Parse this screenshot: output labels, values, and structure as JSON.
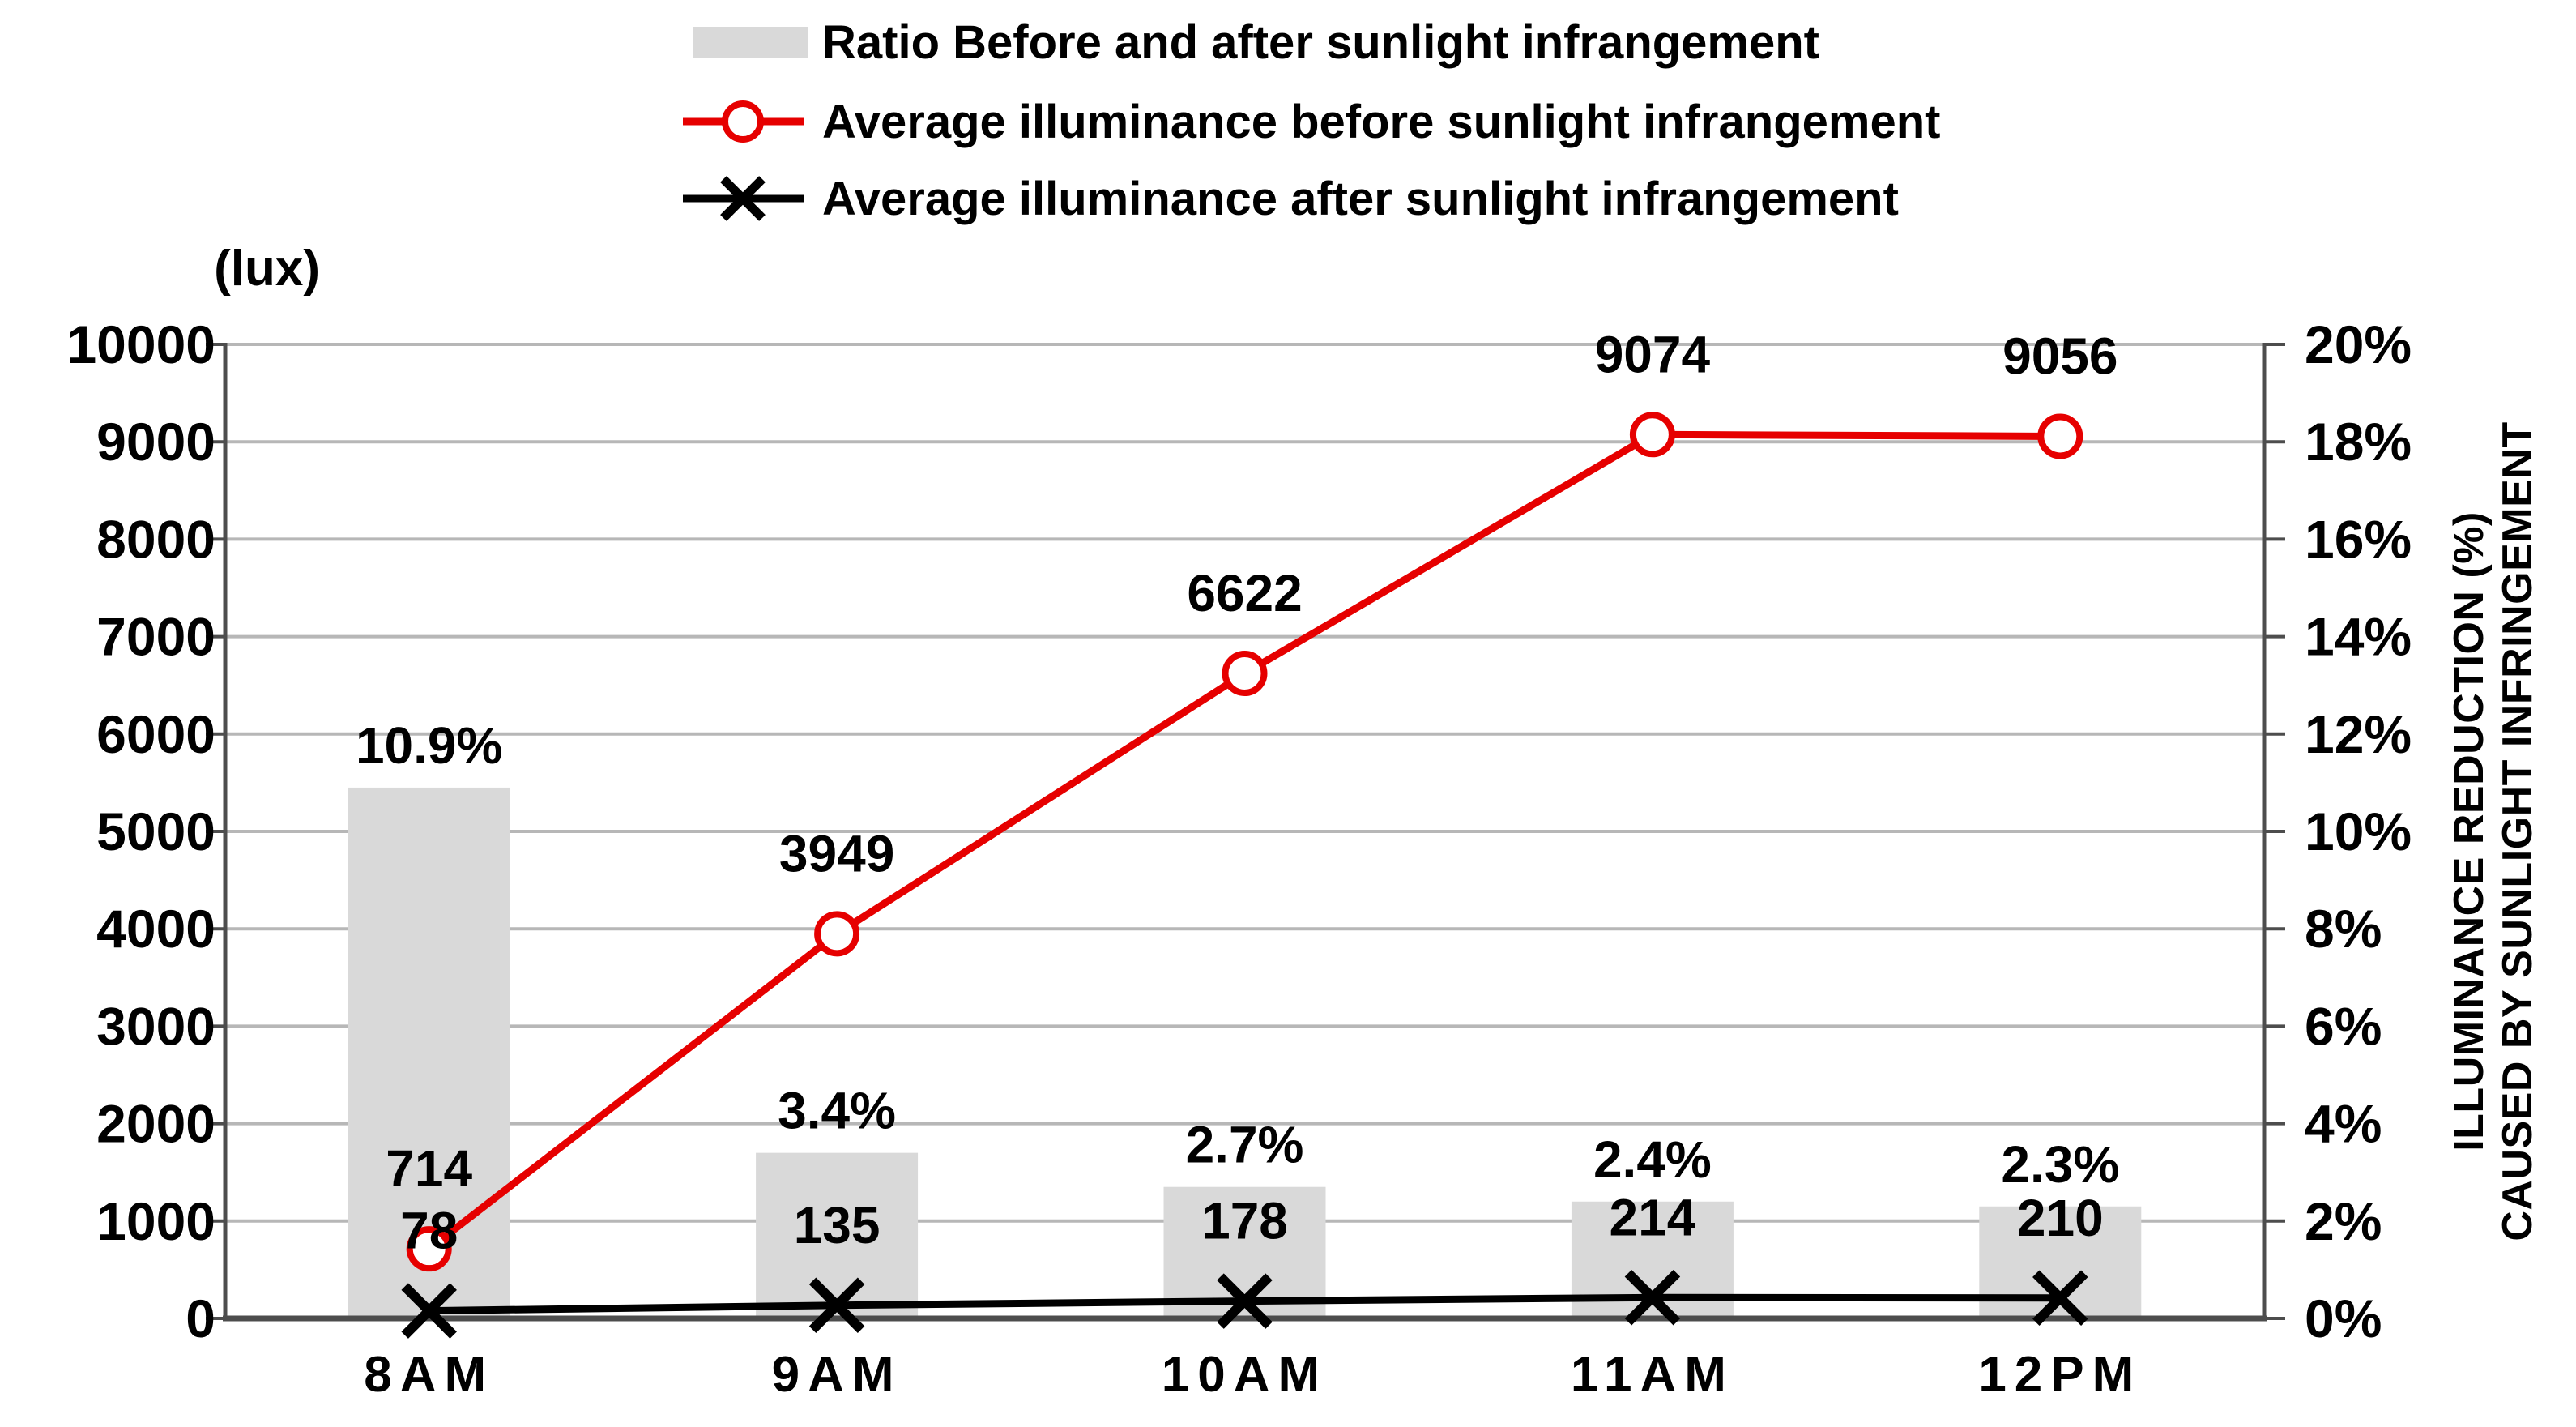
{
  "legend": {
    "items": [
      {
        "label": "Ratio Before and after sunlight infrangement",
        "marker": "bar-swatch",
        "color": "#d9d9d9"
      },
      {
        "label": "Average illuminance before sunlight infrangement",
        "marker": "line-circle",
        "color": "#e60000"
      },
      {
        "label": "Average illuminance after sunlight infrangement",
        "marker": "line-x",
        "color": "#000000"
      }
    ]
  },
  "left_axis": {
    "unit": "(lux)",
    "min": 0,
    "max": 10000,
    "step": 1000,
    "tick_labels": [
      "0",
      "1000",
      "2000",
      "3000",
      "4000",
      "5000",
      "6000",
      "7000",
      "8000",
      "9000",
      "10000"
    ]
  },
  "right_axis": {
    "min": 0,
    "max": 20,
    "step": 2,
    "tick_labels": [
      "0%",
      "2%",
      "4%",
      "6%",
      "8%",
      "10%",
      "12%",
      "14%",
      "16%",
      "18%",
      "20%"
    ],
    "title_lines": [
      "ILLUMINANCE REDUCTION (%)",
      "CAUSED BY SUNLIGHT INFRINGEMENT"
    ]
  },
  "chart_data": {
    "type": "combo",
    "categories": [
      "8AM",
      "9AM",
      "10AM",
      "11AM",
      "12PM"
    ],
    "series": [
      {
        "name": "Ratio Before and after sunlight infrangement",
        "type": "bar",
        "axis": "right",
        "unit": "%",
        "values": [
          10.9,
          3.4,
          2.7,
          2.4,
          2.3
        ],
        "labels": [
          "10.9%",
          "3.4%",
          "2.7%",
          "2.4%",
          "2.3%"
        ],
        "color": "#d9d9d9"
      },
      {
        "name": "Average illuminance before sunlight infrangement",
        "type": "line",
        "marker": "circle",
        "axis": "left",
        "unit": "lux",
        "values": [
          714,
          3949,
          6622,
          9074,
          9056
        ],
        "labels": [
          "714",
          "3949",
          "6622",
          "9074",
          "9056"
        ],
        "color": "#e60000"
      },
      {
        "name": "Average illuminance after sunlight infrangement",
        "type": "line",
        "marker": "x",
        "axis": "left",
        "unit": "lux",
        "values": [
          78,
          135,
          178,
          214,
          210
        ],
        "labels": [
          "78",
          "135",
          "178",
          "214",
          "210"
        ],
        "color": "#000000"
      }
    ],
    "left_ylim": [
      0,
      10000
    ],
    "right_ylim": [
      0,
      20
    ],
    "grid": true,
    "legend_position": "top"
  },
  "colors": {
    "background": "#ffffff",
    "grid": "#b7b7b7",
    "axis": "#4d4d4d",
    "bar": "#d9d9d9",
    "line_before": "#e60000",
    "line_after": "#000000",
    "text": "#000000"
  }
}
